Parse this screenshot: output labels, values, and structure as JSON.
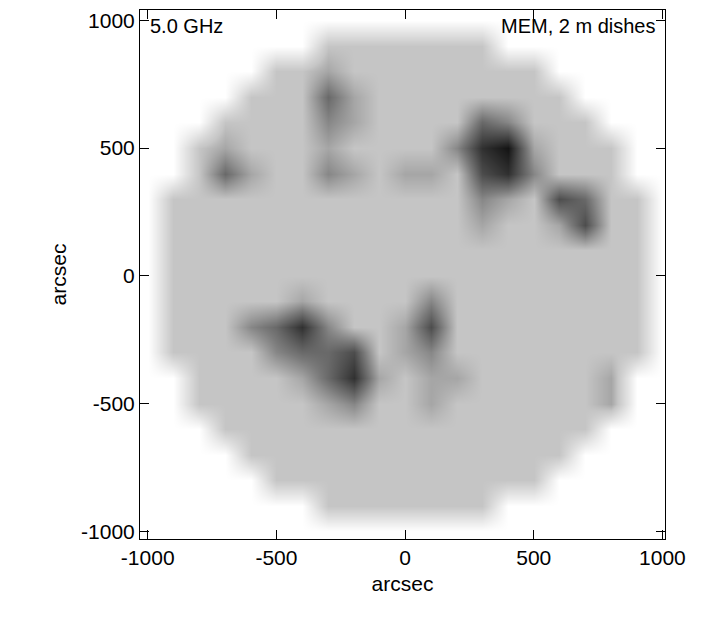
{
  "chart_data": {
    "type": "heatmap",
    "annotations": [
      "5.0 GHz",
      "MEM, 2 m dishes"
    ],
    "x_label": "arcsec",
    "y_label": "arcsec",
    "x": [
      -1000,
      -900,
      -800,
      -700,
      -600,
      -500,
      -400,
      -300,
      -200,
      -100,
      0,
      100,
      200,
      300,
      400,
      500,
      600,
      700,
      800,
      900,
      1000
    ],
    "y": [
      -1000,
      -900,
      -800,
      -700,
      -600,
      -500,
      -400,
      -300,
      -200,
      -100,
      0,
      100,
      200,
      300,
      400,
      500,
      600,
      700,
      800,
      900,
      1000
    ],
    "cells": [
      [
        0,
        0,
        0,
        0,
        0,
        0,
        0,
        0,
        0,
        0,
        0,
        0,
        0,
        0,
        0,
        0,
        0,
        0,
        0,
        0,
        0
      ],
      [
        0,
        0,
        0,
        0,
        0,
        0,
        0,
        3,
        3,
        3,
        3,
        3,
        3,
        3,
        0,
        0,
        0,
        0,
        0,
        0,
        0
      ],
      [
        0,
        0,
        0,
        0,
        0,
        3,
        3,
        3,
        3,
        3,
        3,
        3,
        3,
        3,
        3,
        3,
        0,
        0,
        0,
        0,
        0
      ],
      [
        0,
        0,
        0,
        0,
        3,
        3,
        3,
        3,
        3,
        3,
        3,
        3,
        3,
        3,
        3,
        3,
        3,
        0,
        0,
        0,
        0
      ],
      [
        0,
        0,
        0,
        3,
        3,
        3,
        3,
        3,
        3,
        3,
        3,
        3,
        3,
        3,
        3,
        3,
        3,
        3,
        0,
        0,
        0
      ],
      [
        0,
        0,
        3,
        3,
        3,
        3,
        3,
        4,
        5,
        3,
        3,
        4,
        3,
        3,
        3,
        3,
        3,
        3,
        4,
        0,
        0
      ],
      [
        0,
        0,
        3,
        3,
        3,
        3,
        4,
        6,
        8,
        4,
        3,
        4,
        4,
        3,
        3,
        3,
        3,
        3,
        4,
        0,
        0
      ],
      [
        0,
        3,
        3,
        3,
        3,
        5,
        6,
        6,
        7,
        3,
        4,
        5,
        3,
        3,
        3,
        3,
        3,
        3,
        3,
        3,
        0
      ],
      [
        0,
        3,
        3,
        3,
        5,
        6,
        8,
        5,
        3,
        3,
        4,
        7,
        3,
        3,
        3,
        3,
        3,
        3,
        3,
        3,
        0
      ],
      [
        0,
        3,
        3,
        3,
        3,
        3,
        4,
        3,
        3,
        3,
        3,
        5,
        3,
        3,
        3,
        3,
        3,
        3,
        3,
        3,
        0
      ],
      [
        0,
        3,
        3,
        3,
        3,
        3,
        3,
        3,
        3,
        3,
        3,
        3,
        3,
        3,
        3,
        3,
        3,
        3,
        3,
        3,
        0
      ],
      [
        0,
        3,
        3,
        3,
        3,
        3,
        3,
        3,
        3,
        3,
        3,
        3,
        3,
        3,
        3,
        3,
        3,
        3,
        3,
        3,
        0
      ],
      [
        0,
        3,
        3,
        3,
        3,
        3,
        3,
        3,
        3,
        3,
        3,
        3,
        3,
        4,
        3,
        3,
        4,
        7,
        3,
        3,
        0
      ],
      [
        0,
        3,
        3,
        3,
        3,
        3,
        3,
        3,
        3,
        3,
        3,
        3,
        3,
        5,
        4,
        3,
        7,
        6,
        3,
        3,
        0
      ],
      [
        0,
        0,
        3,
        6,
        4,
        3,
        3,
        5,
        4,
        3,
        4,
        4,
        3,
        7,
        8,
        5,
        3,
        3,
        3,
        0,
        0
      ],
      [
        0,
        0,
        3,
        4,
        3,
        3,
        3,
        4,
        3,
        3,
        3,
        3,
        5,
        8,
        9,
        4,
        3,
        3,
        3,
        0,
        0
      ],
      [
        0,
        0,
        0,
        3,
        3,
        3,
        3,
        5,
        4,
        3,
        3,
        3,
        3,
        6,
        5,
        3,
        3,
        3,
        0,
        0,
        0
      ],
      [
        0,
        0,
        0,
        0,
        3,
        3,
        3,
        6,
        4,
        3,
        3,
        3,
        3,
        3,
        3,
        3,
        3,
        0,
        0,
        0,
        0
      ],
      [
        0,
        0,
        0,
        0,
        0,
        3,
        3,
        4,
        3,
        3,
        3,
        3,
        3,
        3,
        3,
        3,
        0,
        0,
        0,
        0,
        0
      ],
      [
        0,
        0,
        0,
        0,
        0,
        0,
        0,
        3,
        3,
        3,
        3,
        3,
        3,
        3,
        0,
        0,
        0,
        0,
        0,
        0,
        0
      ],
      [
        0,
        0,
        0,
        0,
        0,
        0,
        0,
        0,
        0,
        0,
        0,
        0,
        0,
        0,
        0,
        0,
        0,
        0,
        0,
        0,
        0
      ]
    ],
    "xlim": [
      -1030,
      1010
    ],
    "ylim": [
      -1030,
      1040
    ],
    "xticks": [
      -1000,
      -500,
      0,
      500,
      1000
    ],
    "yticks": [
      -1000,
      -500,
      0,
      500,
      1000
    ]
  }
}
